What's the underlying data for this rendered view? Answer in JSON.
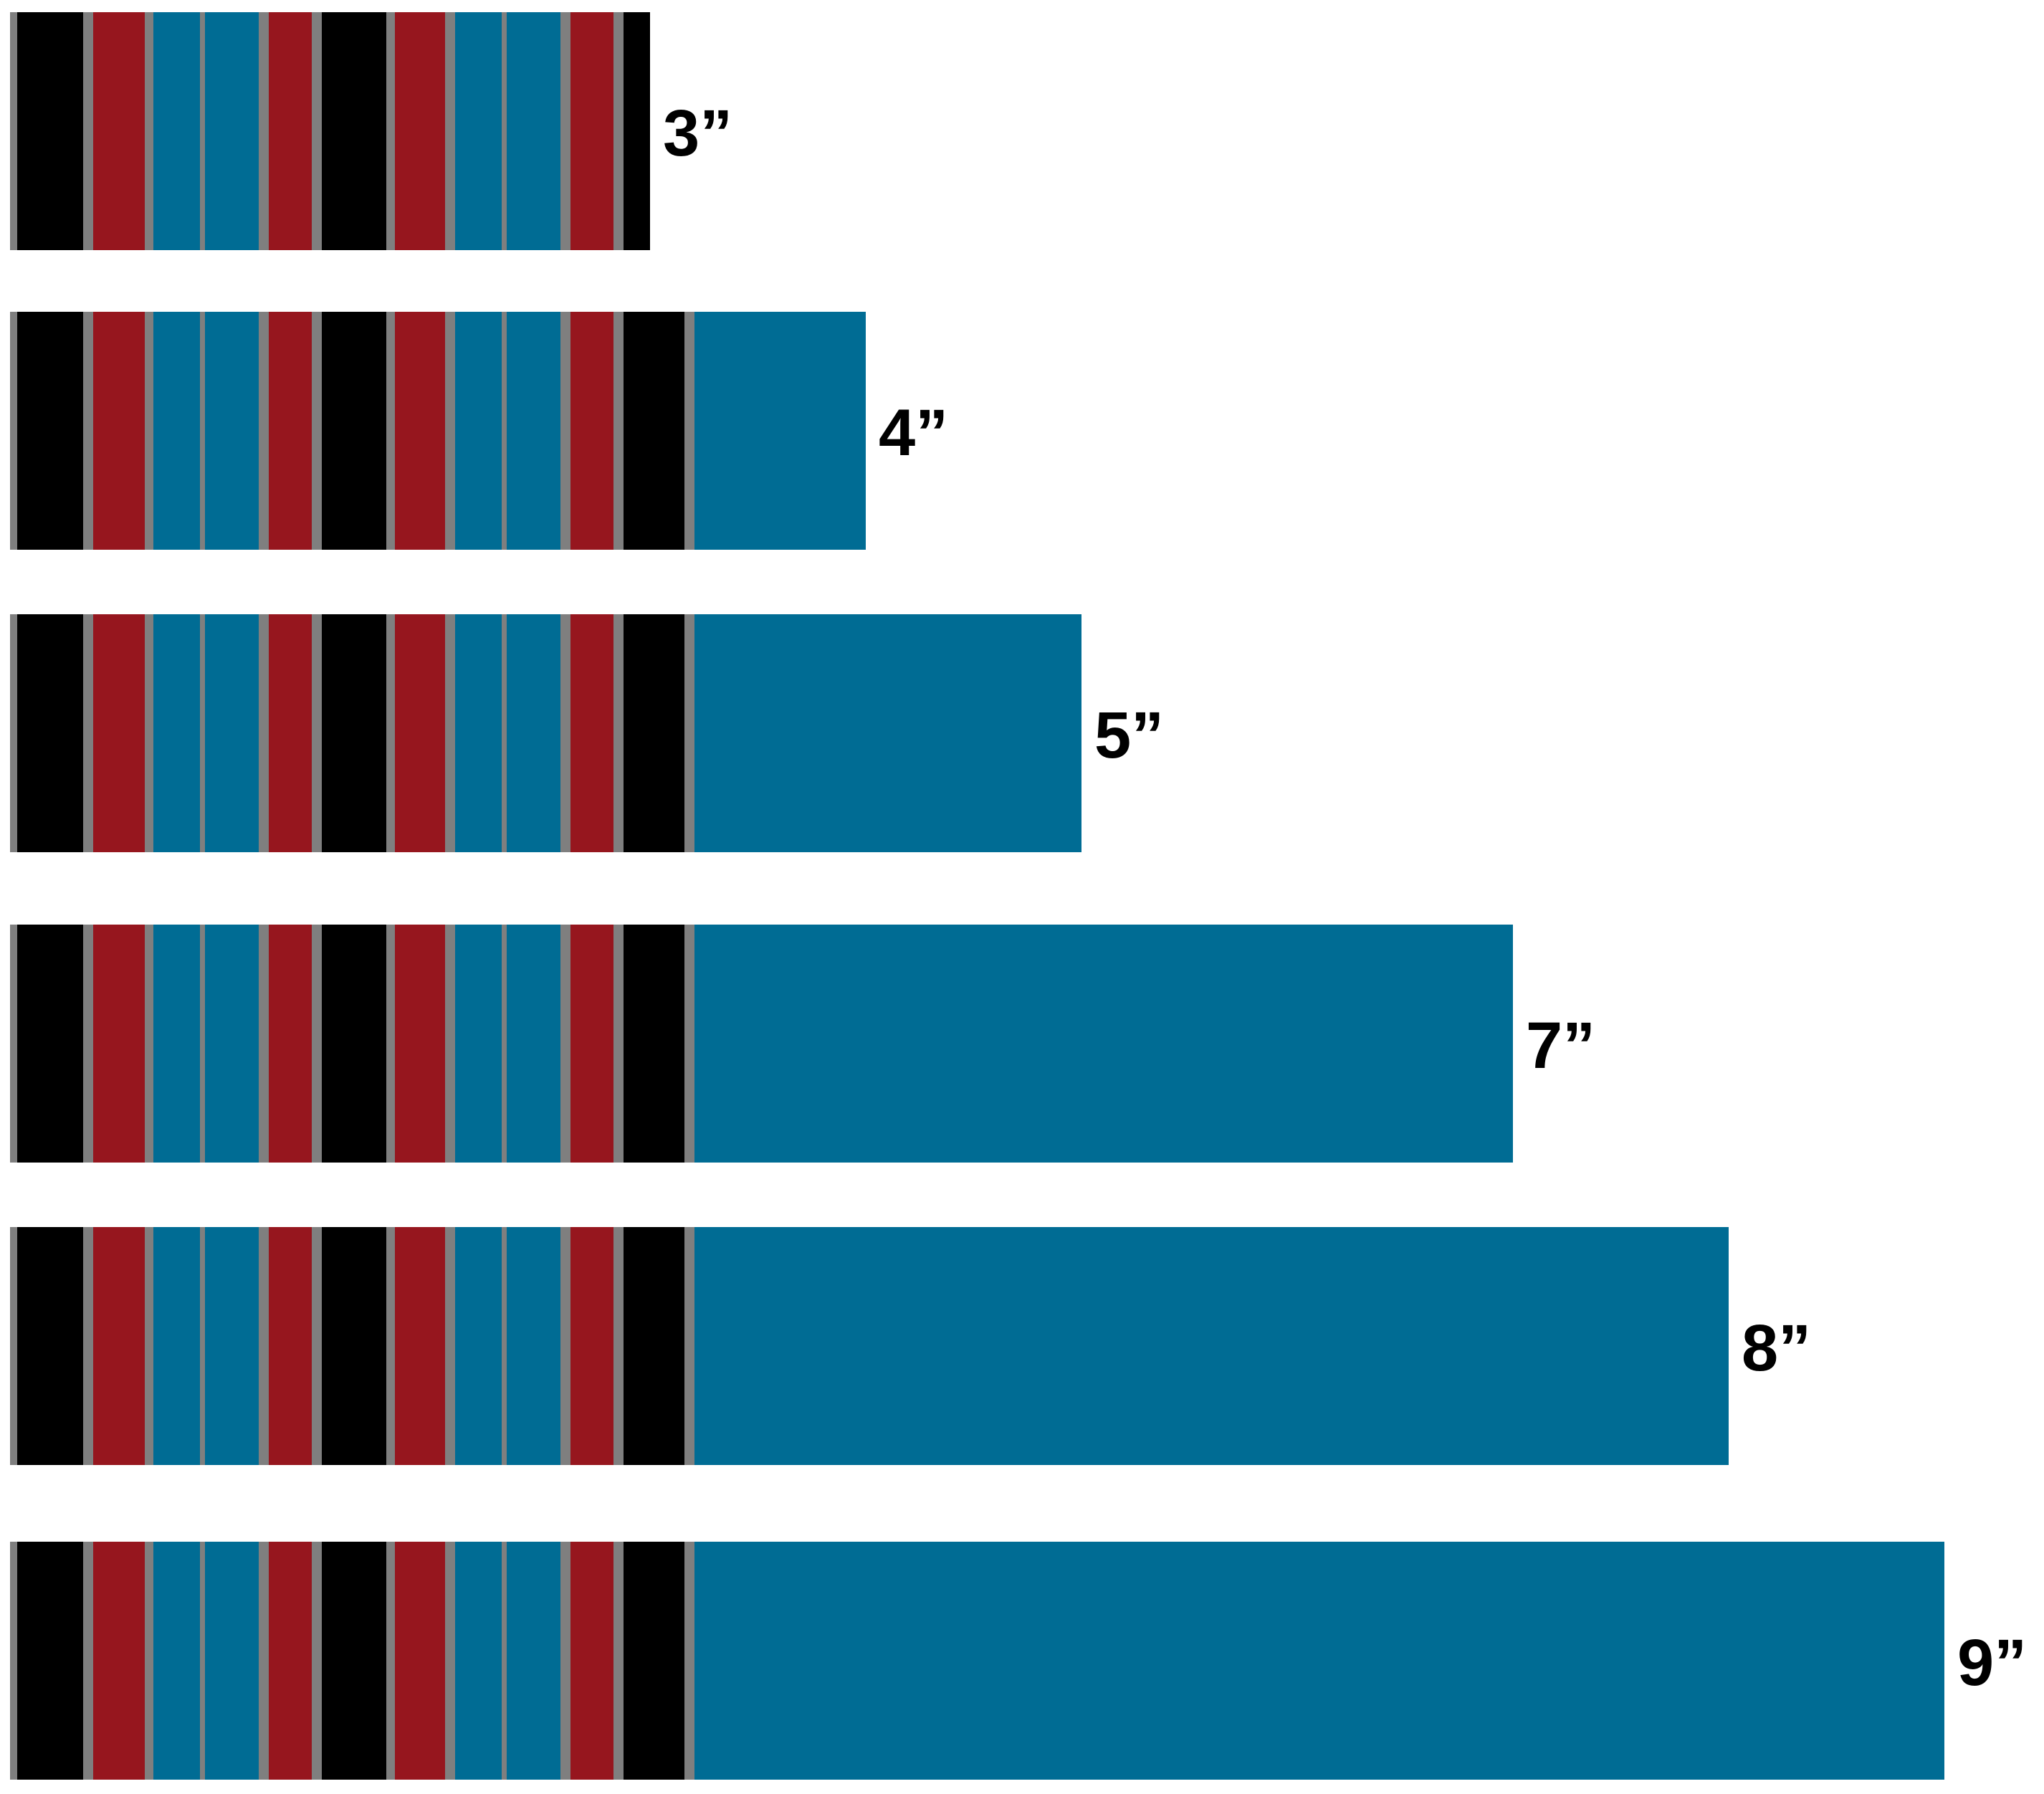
{
  "colors": {
    "black": "#000000",
    "red": "#96161e",
    "blue": "#006c94",
    "gray": "#7f7f7f",
    "background": "#ffffff"
  },
  "stripe_pattern": [
    "gray",
    "black",
    "gray",
    "red",
    "gray",
    "blue",
    "gray",
    "blue",
    "gray",
    "red",
    "gray",
    "black",
    "gray",
    "red",
    "gray",
    "blue",
    "gray",
    "blue",
    "gray",
    "red",
    "gray",
    "black",
    "gray",
    "blue"
  ],
  "bars": [
    {
      "label": "3”",
      "length_in": 3
    },
    {
      "label": "4”",
      "length_in": 4
    },
    {
      "label": "5”",
      "length_in": 5
    },
    {
      "label": "7”",
      "length_in": 7
    },
    {
      "label": "8”",
      "length_in": 8
    },
    {
      "label": "9”",
      "length_in": 9
    }
  ]
}
